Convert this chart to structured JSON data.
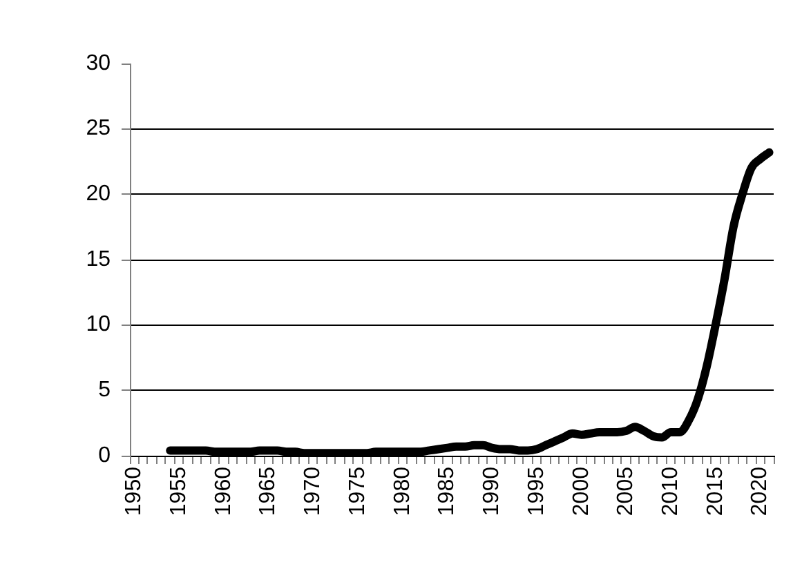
{
  "chart_data": {
    "type": "line",
    "categories": [
      "1950",
      null,
      null,
      null,
      null,
      "1955",
      null,
      null,
      null,
      null,
      "1960",
      null,
      null,
      null,
      null,
      "1965",
      null,
      null,
      null,
      null,
      "1970",
      null,
      null,
      null,
      null,
      "1975",
      null,
      null,
      null,
      null,
      "1980",
      null,
      null,
      null,
      null,
      "1985",
      null,
      null,
      null,
      null,
      "1990",
      null,
      null,
      null,
      null,
      "1995",
      null,
      null,
      null,
      null,
      "2000",
      null,
      null,
      null,
      null,
      "2005",
      null,
      null,
      null,
      null,
      "2010",
      null,
      null,
      null,
      null,
      "2015",
      null,
      null,
      null,
      null,
      "2020",
      null
    ],
    "series": [
      {
        "color": "#000000",
        "values": [
          null,
          null,
          null,
          null,
          0.4,
          0.4,
          0.4,
          0.4,
          0.4,
          0.3,
          0.3,
          0.3,
          0.3,
          0.3,
          0.4,
          0.4,
          0.4,
          0.3,
          0.3,
          0.2,
          0.2,
          0.2,
          0.2,
          0.2,
          0.2,
          0.2,
          0.2,
          0.3,
          0.3,
          0.3,
          0.3,
          0.3,
          0.3,
          0.4,
          0.5,
          0.6,
          0.7,
          0.7,
          0.8,
          0.8,
          0.6,
          0.5,
          0.5,
          0.4,
          0.4,
          0.5,
          0.8,
          1.1,
          1.4,
          1.7,
          1.6,
          1.7,
          1.8,
          1.8,
          1.8,
          1.9,
          2.2,
          1.9,
          1.5,
          1.4,
          1.8,
          1.8,
          2.7,
          4.3,
          6.8,
          10.0,
          13.5,
          17.5,
          20.0,
          22.0,
          22.7,
          23.2
        ]
      }
    ],
    "ylim": [
      0,
      30
    ],
    "yticks": [
      0,
      5,
      10,
      15,
      20,
      25,
      30
    ],
    "grid": "y",
    "line_style": "solid"
  }
}
